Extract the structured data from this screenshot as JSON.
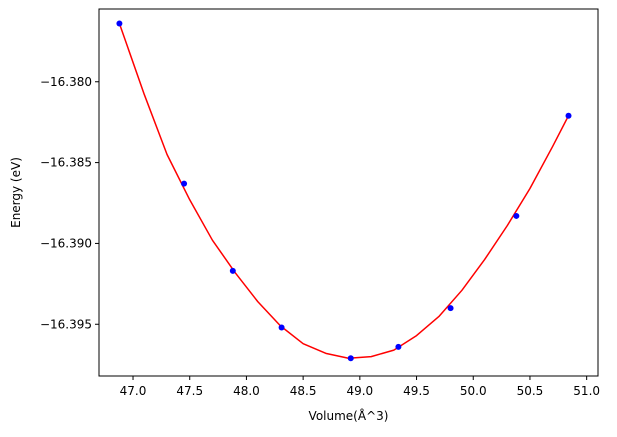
{
  "colors": {
    "fit_line": "#ff0000",
    "points": "#0000ff",
    "axes": "#000000",
    "background": "#ffffff"
  },
  "chart_data": {
    "type": "scatter",
    "title": "",
    "xlabel": "Volume(Å^3)",
    "ylabel": "Energy (eV)",
    "xlim": [
      46.7,
      51.1
    ],
    "ylim": [
      -16.3982,
      -16.3755
    ],
    "xticks": [
      47.0,
      47.5,
      48.0,
      48.5,
      49.0,
      49.5,
      50.0,
      50.5,
      51.0
    ],
    "xtick_labels": [
      "47.0",
      "47.5",
      "48.0",
      "48.5",
      "49.0",
      "49.5",
      "50.0",
      "50.5",
      "51.0"
    ],
    "yticks": [
      -16.38,
      -16.385,
      -16.39,
      -16.395
    ],
    "ytick_labels": [
      "−16.380",
      "−16.385",
      "−16.390",
      "−16.395"
    ],
    "grid": false,
    "legend": "none",
    "series": [
      {
        "kind": "scatter",
        "x": [
          46.88,
          47.45,
          47.88,
          48.31,
          48.92,
          49.34,
          49.8,
          50.38,
          50.84
        ],
        "y": [
          -16.3764,
          -16.3863,
          -16.3917,
          -16.3952,
          -16.3971,
          -16.3964,
          -16.394,
          -16.3883,
          -16.3821
        ]
      },
      {
        "kind": "line",
        "x": [
          46.88,
          47.1,
          47.3,
          47.5,
          47.7,
          47.9,
          48.1,
          48.3,
          48.5,
          48.7,
          48.9,
          49.1,
          49.3,
          49.5,
          49.7,
          49.9,
          50.1,
          50.3,
          50.5,
          50.7,
          50.84
        ],
        "y": [
          -16.3764,
          -16.3808,
          -16.3845,
          -16.3873,
          -16.3898,
          -16.3918,
          -16.3936,
          -16.3951,
          -16.3962,
          -16.3968,
          -16.3971,
          -16.397,
          -16.3966,
          -16.3957,
          -16.3945,
          -16.3929,
          -16.391,
          -16.3889,
          -16.3866,
          -16.384,
          -16.3821
        ]
      }
    ]
  }
}
